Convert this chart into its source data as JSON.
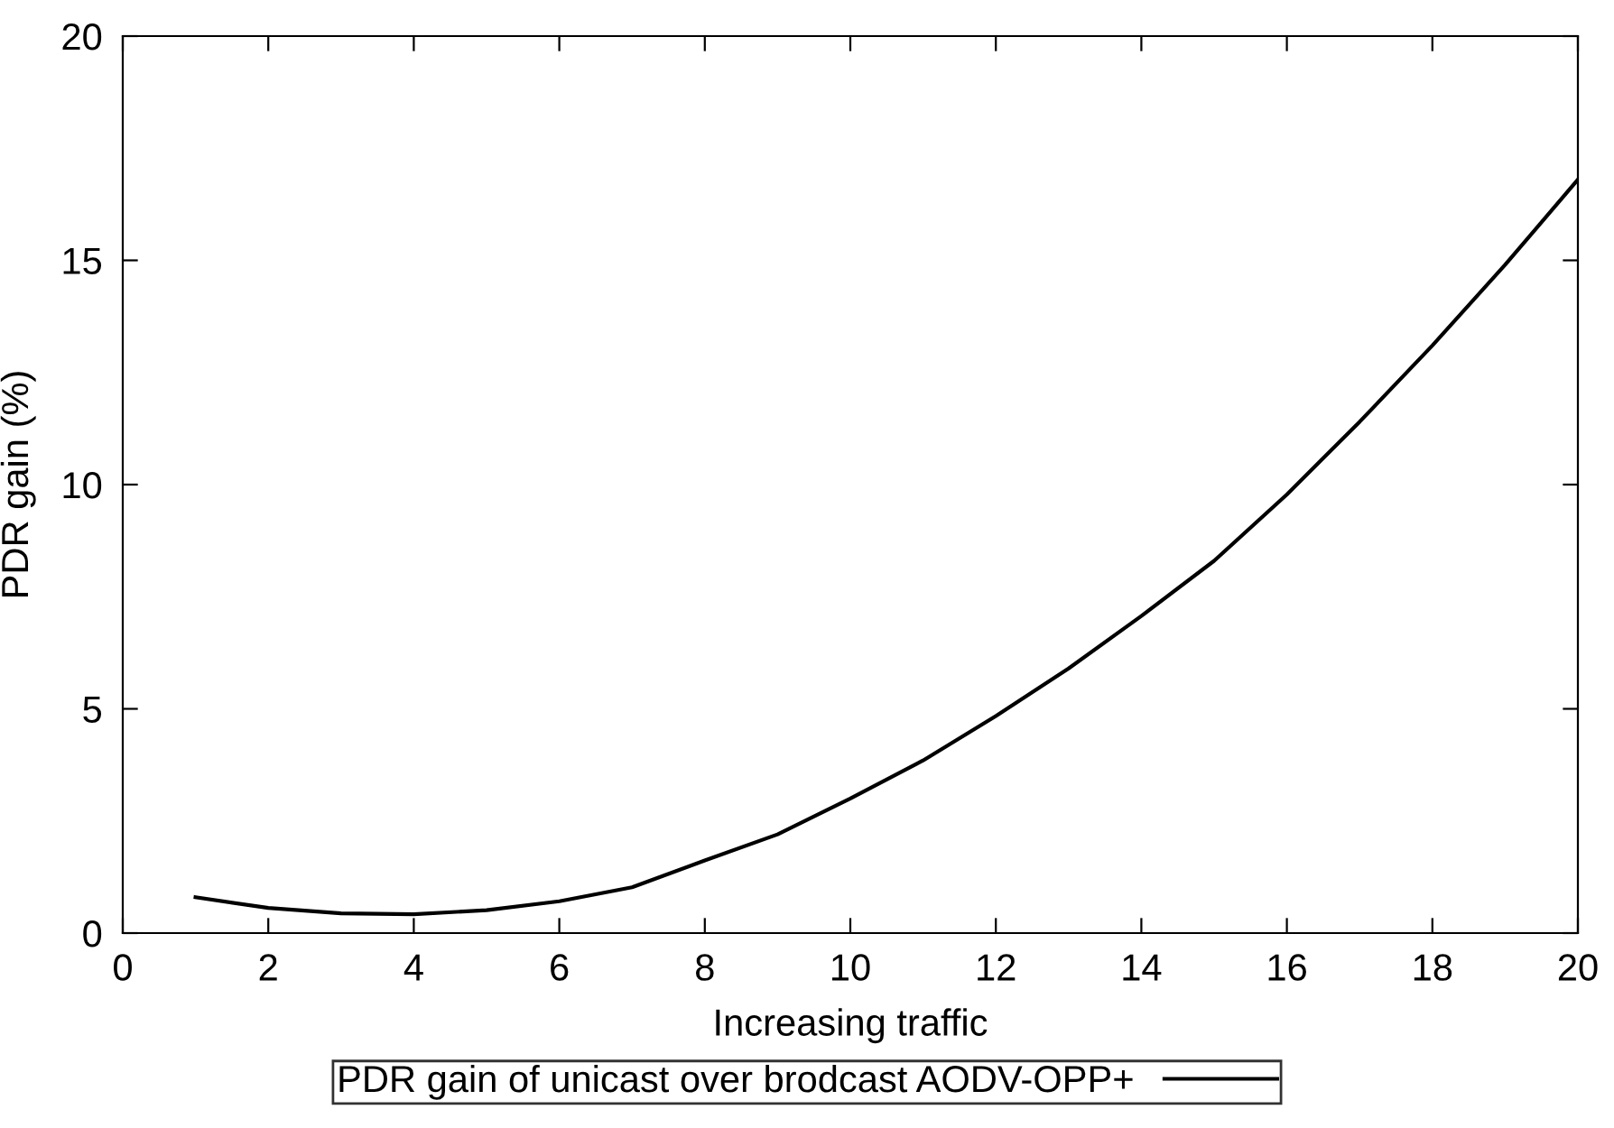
{
  "chart_data": {
    "type": "line",
    "xlabel": "Increasing traffic",
    "ylabel": "PDR gain (%)",
    "x": [
      1,
      2,
      3,
      4,
      5,
      6,
      7,
      8,
      9,
      10,
      11,
      12,
      13,
      14,
      15,
      16,
      17,
      18,
      19,
      20
    ],
    "series": [
      {
        "name": "PDR gain of unicast over brodcast AODV-OPP+",
        "color": "#000000",
        "values": [
          0.8,
          0.56,
          0.44,
          0.42,
          0.51,
          0.71,
          1.02,
          1.62,
          2.2,
          3.0,
          3.85,
          4.84,
          5.9,
          7.07,
          8.3,
          9.78,
          11.4,
          13.1,
          14.9,
          16.8
        ]
      }
    ],
    "xlim": [
      0,
      20
    ],
    "ylim": [
      0,
      20
    ],
    "xticks": [
      0,
      2,
      4,
      6,
      8,
      10,
      12,
      14,
      16,
      18,
      20
    ],
    "yticks": [
      0,
      5,
      10,
      15,
      20
    ],
    "grid": false,
    "legend": "bottom",
    "marker": "none",
    "line_style": "solid"
  }
}
